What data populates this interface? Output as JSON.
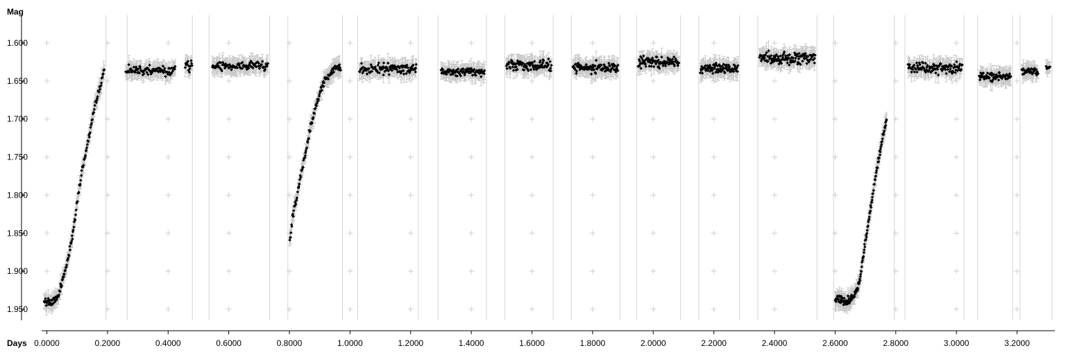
{
  "chart_data": {
    "type": "scatter",
    "title": "",
    "xlabel": "Days",
    "ylabel": "Mag",
    "y_inverted": true,
    "xlim": [
      -0.02,
      3.33
    ],
    "ylim": [
      1.575,
      1.975
    ],
    "grid": "light gray '+' markers at tick intersections; vertical separator lines between observing runs",
    "error_bars": true,
    "colors": {
      "points": "#000000",
      "error_bars": "#c8c8c8",
      "grid": "#d4d4d4",
      "axis": "#000000"
    },
    "x_ticks": [
      "0.0000",
      "0.2000",
      "0.4000",
      "0.6000",
      "0.8000",
      "1.0000",
      "1.2000",
      "1.4000",
      "1.6000",
      "1.8000",
      "2.0000",
      "2.2000",
      "2.4000",
      "2.6000",
      "2.8000",
      "3.0000",
      "3.2000"
    ],
    "y_ticks": [
      "1.600",
      "1.650",
      "1.700",
      "1.750",
      "1.800",
      "1.850",
      "1.900",
      "1.950"
    ],
    "run_separators": [
      0.195,
      0.265,
      0.48,
      0.535,
      0.735,
      0.795,
      0.975,
      1.025,
      1.225,
      1.29,
      1.45,
      1.51,
      1.67,
      1.73,
      1.89,
      1.945,
      2.09,
      2.15,
      2.285,
      2.345,
      2.54,
      2.595,
      2.795,
      2.83,
      3.025,
      3.07,
      3.185,
      3.21,
      3.315
    ],
    "segments": [
      {
        "type": "curve",
        "x": [
          -0.01,
          0.02,
          0.04,
          0.06,
          0.08,
          0.1,
          0.12,
          0.14,
          0.16,
          0.18,
          0.19
        ],
        "y": [
          1.94,
          1.94,
          1.93,
          1.9,
          1.865,
          1.81,
          1.76,
          1.72,
          1.68,
          1.65,
          1.63
        ],
        "n": 130,
        "scatter": 0.007
      },
      {
        "type": "flat",
        "x0": 0.26,
        "x1": 0.425,
        "mag": 1.636,
        "n": 90,
        "scatter": 0.009
      },
      {
        "type": "flat",
        "x0": 0.455,
        "x1": 0.48,
        "mag": 1.63,
        "n": 14,
        "scatter": 0.01
      },
      {
        "type": "flat",
        "x0": 0.545,
        "x1": 0.73,
        "mag": 1.63,
        "n": 100,
        "scatter": 0.008
      },
      {
        "type": "curve",
        "x": [
          0.8,
          0.81,
          0.83,
          0.85,
          0.87,
          0.89,
          0.91,
          0.93,
          0.95,
          0.97
        ],
        "y": [
          1.865,
          1.83,
          1.79,
          1.75,
          1.71,
          1.68,
          1.655,
          1.642,
          1.635,
          1.632
        ],
        "n": 110,
        "scatter": 0.007
      },
      {
        "type": "flat",
        "x0": 1.03,
        "x1": 1.22,
        "mag": 1.634,
        "n": 110,
        "scatter": 0.01
      },
      {
        "type": "flat",
        "x0": 1.3,
        "x1": 1.445,
        "mag": 1.638,
        "n": 90,
        "scatter": 0.007
      },
      {
        "type": "flat",
        "x0": 1.515,
        "x1": 1.665,
        "mag": 1.63,
        "n": 100,
        "scatter": 0.011
      },
      {
        "type": "flat",
        "x0": 1.735,
        "x1": 1.885,
        "mag": 1.632,
        "n": 100,
        "scatter": 0.01
      },
      {
        "type": "flat",
        "x0": 1.95,
        "x1": 2.085,
        "mag": 1.625,
        "n": 100,
        "scatter": 0.011
      },
      {
        "type": "flat",
        "x0": 2.155,
        "x1": 2.28,
        "mag": 1.634,
        "n": 90,
        "scatter": 0.009
      },
      {
        "type": "flat",
        "x0": 2.35,
        "x1": 2.535,
        "mag": 1.62,
        "n": 130,
        "scatter": 0.013
      },
      {
        "type": "curve",
        "x": [
          2.6,
          2.63,
          2.66,
          2.68,
          2.7,
          2.72,
          2.74,
          2.76,
          2.77
        ],
        "y": [
          1.935,
          1.94,
          1.935,
          1.915,
          1.86,
          1.81,
          1.76,
          1.72,
          1.7
        ],
        "n": 150,
        "scatter": 0.008
      },
      {
        "type": "flat",
        "x0": 2.84,
        "x1": 3.02,
        "mag": 1.633,
        "n": 110,
        "scatter": 0.011
      },
      {
        "type": "flat",
        "x0": 3.075,
        "x1": 3.18,
        "mag": 1.644,
        "n": 70,
        "scatter": 0.008
      },
      {
        "type": "flat",
        "x0": 3.215,
        "x1": 3.27,
        "mag": 1.637,
        "n": 35,
        "scatter": 0.008
      },
      {
        "type": "flat",
        "x0": 3.295,
        "x1": 3.31,
        "mag": 1.633,
        "n": 8,
        "scatter": 0.007
      }
    ]
  }
}
